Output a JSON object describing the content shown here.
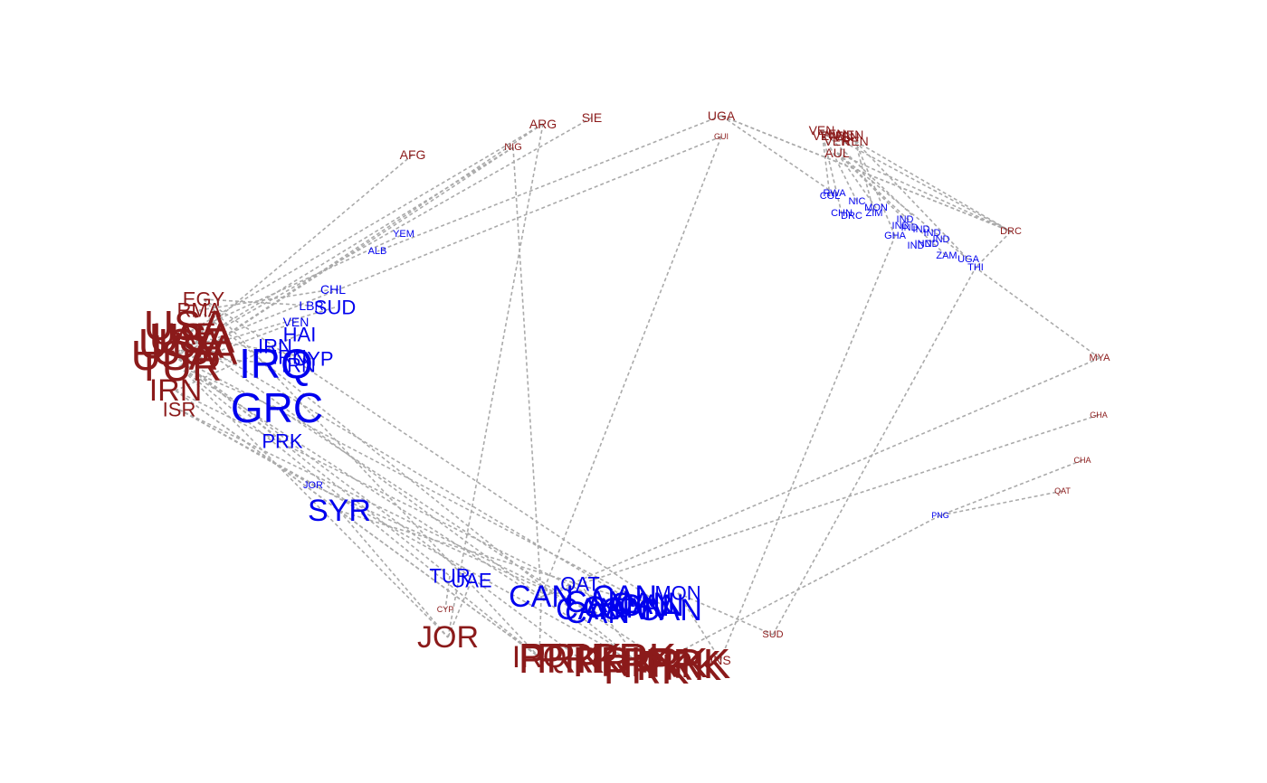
{
  "colors": {
    "group_a": "#0000ee",
    "group_b": "#8b1a1a",
    "edge": "#aaaaaa"
  },
  "nodes": [
    {
      "id": "b-afg",
      "label": "AFG",
      "group": "b",
      "size": "s"
    },
    {
      "id": "b-arg",
      "label": "ARG",
      "group": "b",
      "size": "s"
    },
    {
      "id": "b-sie",
      "label": "SIE",
      "group": "b",
      "size": "s"
    },
    {
      "id": "b-nig",
      "label": "NIG",
      "group": "b",
      "size": "xs"
    },
    {
      "id": "b-uga",
      "label": "UGA",
      "group": "b",
      "size": "s"
    },
    {
      "id": "b-gui",
      "label": "GUI",
      "group": "b",
      "size": "xxs"
    },
    {
      "id": "b-ven",
      "label": "VEN",
      "group": "b",
      "size": "s"
    },
    {
      "id": "b-ren",
      "label": "REN",
      "group": "b",
      "size": "s"
    },
    {
      "id": "b-aul",
      "label": "AUL",
      "group": "b",
      "size": "s"
    },
    {
      "id": "b-drc",
      "label": "DRC",
      "group": "b",
      "size": "xs"
    },
    {
      "id": "b-mya",
      "label": "MYA",
      "group": "b",
      "size": "xs"
    },
    {
      "id": "b-gha",
      "label": "GHA",
      "group": "b",
      "size": "xxs"
    },
    {
      "id": "b-cha",
      "label": "CHA",
      "group": "b",
      "size": "xxs"
    },
    {
      "id": "b-qat",
      "label": "QAT",
      "group": "b",
      "size": "xxs"
    },
    {
      "id": "b-egy",
      "label": "EGY",
      "group": "b",
      "size": "m"
    },
    {
      "id": "b-rma",
      "label": "RMA",
      "group": "b",
      "size": "m"
    },
    {
      "id": "b-uae",
      "label": "UAE",
      "group": "b",
      "size": "l"
    },
    {
      "id": "b-usa",
      "label": "USA",
      "group": "b",
      "size": "xl"
    },
    {
      "id": "b-tur",
      "label": "TUR",
      "group": "b",
      "size": "xl"
    },
    {
      "id": "b-irn",
      "label": "IRN",
      "group": "b",
      "size": "l"
    },
    {
      "id": "b-isr",
      "label": "ISR",
      "group": "b",
      "size": "m"
    },
    {
      "id": "b-cyp",
      "label": "CYP",
      "group": "b",
      "size": "xxs"
    },
    {
      "id": "b-jor",
      "label": "JOR",
      "group": "b",
      "size": "l"
    },
    {
      "id": "b-irq",
      "label": "IRQ",
      "group": "b",
      "size": "l"
    },
    {
      "id": "b-prk",
      "label": "PRK",
      "group": "b",
      "size": "xl"
    },
    {
      "id": "b-sud",
      "label": "SUD",
      "group": "b",
      "size": "xs"
    },
    {
      "id": "b-ins",
      "label": "INS",
      "group": "b",
      "size": "s"
    },
    {
      "id": "a-yem",
      "label": "YEM",
      "group": "a",
      "size": "xs"
    },
    {
      "id": "a-alb",
      "label": "ALB",
      "group": "a",
      "size": "xs"
    },
    {
      "id": "a-chl",
      "label": "CHL",
      "group": "a",
      "size": "s"
    },
    {
      "id": "a-lbr",
      "label": "LBR",
      "group": "a",
      "size": "s"
    },
    {
      "id": "a-sud",
      "label": "SUD",
      "group": "a",
      "size": "m"
    },
    {
      "id": "a-ven",
      "label": "VEN",
      "group": "a",
      "size": "s"
    },
    {
      "id": "a-hai",
      "label": "HAI",
      "group": "a",
      "size": "m"
    },
    {
      "id": "a-irn",
      "label": "IRN",
      "group": "a",
      "size": "m"
    },
    {
      "id": "a-irq",
      "label": "IRQ",
      "group": "a",
      "size": "xl"
    },
    {
      "id": "a-cyp",
      "label": "CYP",
      "group": "a",
      "size": "m"
    },
    {
      "id": "a-grc",
      "label": "GRC",
      "group": "a",
      "size": "xl"
    },
    {
      "id": "a-prk",
      "label": "PRK",
      "group": "a",
      "size": "m"
    },
    {
      "id": "a-jor",
      "label": "JOR",
      "group": "a",
      "size": "xs"
    },
    {
      "id": "a-syr",
      "label": "SYR",
      "group": "a",
      "size": "l"
    },
    {
      "id": "a-tur",
      "label": "TUR",
      "group": "a",
      "size": "m"
    },
    {
      "id": "a-uae",
      "label": "UAE",
      "group": "a",
      "size": "m"
    },
    {
      "id": "a-can",
      "label": "CAN",
      "group": "a",
      "size": "l"
    },
    {
      "id": "a-qat",
      "label": "QAT",
      "group": "a",
      "size": "m"
    },
    {
      "id": "a-mon",
      "label": "MON",
      "group": "a",
      "size": "m"
    },
    {
      "id": "a-rwa",
      "label": "RWA",
      "group": "a",
      "size": "xs"
    },
    {
      "id": "a-col",
      "label": "COL",
      "group": "a",
      "size": "xs"
    },
    {
      "id": "a-nic",
      "label": "NIC",
      "group": "a",
      "size": "xs"
    },
    {
      "id": "a-chn",
      "label": "CHN",
      "group": "a",
      "size": "xs"
    },
    {
      "id": "a-drc",
      "label": "DRC",
      "group": "a",
      "size": "xs"
    },
    {
      "id": "a-zim",
      "label": "ZIM",
      "group": "a",
      "size": "xs"
    },
    {
      "id": "a-mon2",
      "label": "MON",
      "group": "a",
      "size": "xs"
    },
    {
      "id": "a-ind",
      "label": "IND",
      "group": "a",
      "size": "xs"
    },
    {
      "id": "a-gha",
      "label": "GHA",
      "group": "a",
      "size": "xs"
    },
    {
      "id": "a-zam",
      "label": "ZAM",
      "group": "a",
      "size": "xs"
    },
    {
      "id": "a-uga",
      "label": "UGA",
      "group": "a",
      "size": "xs"
    },
    {
      "id": "a-thi",
      "label": "THI",
      "group": "a",
      "size": "xs"
    },
    {
      "id": "a-png",
      "label": "PNG",
      "group": "a",
      "size": "xxs"
    }
  ],
  "edges": [
    [
      "b-afg",
      "b-usa"
    ],
    [
      "b-arg",
      "b-uae"
    ],
    [
      "b-arg",
      "b-tur"
    ],
    [
      "b-sie",
      "b-usa"
    ],
    [
      "b-nig",
      "b-usa"
    ],
    [
      "b-nig",
      "b-tur"
    ],
    [
      "b-nig",
      "a-can"
    ],
    [
      "b-uga",
      "a-alb"
    ],
    [
      "b-uga",
      "b-drc"
    ],
    [
      "b-gui",
      "a-can"
    ],
    [
      "b-gui",
      "b-usa"
    ],
    [
      "b-ven",
      "a-col"
    ],
    [
      "b-ven",
      "a-chn"
    ],
    [
      "b-ren",
      "a-zim"
    ],
    [
      "b-ren",
      "b-drc"
    ],
    [
      "b-aul",
      "a-ind"
    ],
    [
      "b-aul",
      "a-zam"
    ],
    [
      "b-drc",
      "a-thi"
    ],
    [
      "b-mya",
      "a-thi"
    ],
    [
      "b-mya",
      "a-can"
    ],
    [
      "b-gha",
      "a-can"
    ],
    [
      "b-cha",
      "a-png"
    ],
    [
      "b-qat",
      "a-png"
    ],
    [
      "a-png",
      "b-prk"
    ],
    [
      "b-egy",
      "a-lbr"
    ],
    [
      "b-rma",
      "a-chl"
    ],
    [
      "b-uae",
      "a-yem"
    ],
    [
      "b-usa",
      "a-irq"
    ],
    [
      "b-tur",
      "a-grc"
    ],
    [
      "b-irn",
      "a-syr"
    ],
    [
      "b-isr",
      "a-jor"
    ],
    [
      "b-usa",
      "a-prk"
    ],
    [
      "b-tur",
      "b-jor"
    ],
    [
      "b-irn",
      "b-irq"
    ],
    [
      "b-isr",
      "b-prk"
    ],
    [
      "b-usa",
      "a-tur"
    ],
    [
      "b-uae",
      "a-can"
    ],
    [
      "b-tur",
      "b-irq"
    ],
    [
      "a-sud",
      "b-usa"
    ],
    [
      "a-ven",
      "b-tur"
    ],
    [
      "a-hai",
      "b-irn"
    ],
    [
      "a-cyp",
      "b-uae"
    ],
    [
      "a-syr",
      "b-jor"
    ],
    [
      "a-syr",
      "b-irq"
    ],
    [
      "a-tur",
      "b-cyp"
    ],
    [
      "a-uae",
      "b-jor"
    ],
    [
      "a-can",
      "b-irq"
    ],
    [
      "a-qat",
      "b-prk"
    ],
    [
      "a-mon",
      "b-sud"
    ],
    [
      "a-mon",
      "b-ins"
    ],
    [
      "b-sud",
      "a-thi"
    ],
    [
      "b-ins",
      "a-gha"
    ],
    [
      "a-rwa",
      "b-uga"
    ],
    [
      "a-nic",
      "b-ven"
    ],
    [
      "a-mon2",
      "b-aul"
    ],
    [
      "a-gha",
      "b-ren"
    ],
    [
      "a-uga",
      "b-aul"
    ],
    [
      "b-arg",
      "b-jor"
    ],
    [
      "b-egy",
      "b-irq"
    ],
    [
      "b-rma",
      "b-prk"
    ]
  ]
}
